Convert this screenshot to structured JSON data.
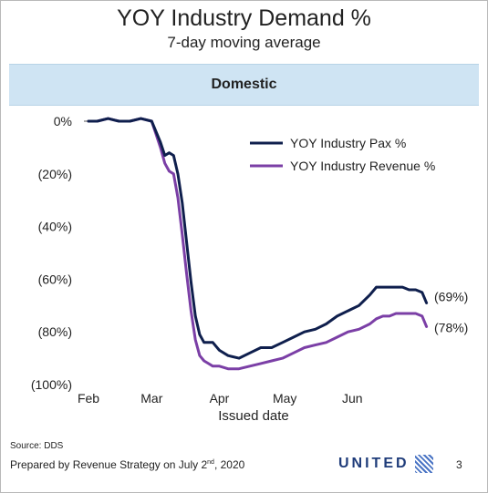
{
  "title": "YOY Industry Demand %",
  "subtitle": "7-day moving average",
  "banner": "Domestic",
  "footer": {
    "source": "Source: DDS",
    "prepared_prefix": "Prepared by Revenue Strategy on July 2",
    "prepared_suffix_sup": "nd",
    "prepared_year": ", 2020",
    "logo_text": "UNITED",
    "page_number": "3"
  },
  "colors": {
    "pax": "#0f1f4d",
    "revenue": "#7b3fa6",
    "banner": "#cfe4f3",
    "logo": "#1f3c7a"
  },
  "chart_data": {
    "type": "line",
    "xlabel": "Issued date",
    "ylabel": "",
    "y_tick_labels": [
      "0%",
      "(20%)",
      "(40%)",
      "(60%)",
      "(80%)",
      "(100%)"
    ],
    "y_ticks": [
      0,
      -20,
      -40,
      -60,
      -80,
      -100
    ],
    "ylim": [
      -100,
      0
    ],
    "x_tick_labels": [
      "Feb",
      "Mar",
      "Apr",
      "May",
      "Jun"
    ],
    "x_ticks": [
      "2020-02-01",
      "2020-03-01",
      "2020-04-01",
      "2020-05-01",
      "2020-06-01"
    ],
    "xlim": [
      "2020-02-01",
      "2020-07-06"
    ],
    "legend_position": "top-right",
    "series": [
      {
        "name": "YOY Industry Pax %",
        "end_label": "(69%)",
        "x": [
          "2020-02-01",
          "2020-02-05",
          "2020-02-10",
          "2020-02-15",
          "2020-02-20",
          "2020-02-25",
          "2020-03-01",
          "2020-03-03",
          "2020-03-05",
          "2020-03-07",
          "2020-03-09",
          "2020-03-11",
          "2020-03-13",
          "2020-03-15",
          "2020-03-17",
          "2020-03-19",
          "2020-03-21",
          "2020-03-23",
          "2020-03-25",
          "2020-03-27",
          "2020-03-29",
          "2020-04-01",
          "2020-04-05",
          "2020-04-10",
          "2020-04-15",
          "2020-04-20",
          "2020-04-25",
          "2020-04-30",
          "2020-05-05",
          "2020-05-10",
          "2020-05-15",
          "2020-05-20",
          "2020-05-25",
          "2020-05-30",
          "2020-06-04",
          "2020-06-09",
          "2020-06-12",
          "2020-06-15",
          "2020-06-18",
          "2020-06-21",
          "2020-06-24",
          "2020-06-27",
          "2020-06-30",
          "2020-07-03",
          "2020-07-05"
        ],
        "y": [
          0,
          0,
          1,
          0,
          0,
          1,
          0,
          -4,
          -8,
          -13,
          -12,
          -13,
          -20,
          -31,
          -46,
          -61,
          -74,
          -81,
          -84,
          -84,
          -84,
          -87,
          -89,
          -90,
          -88,
          -86,
          -86,
          -84,
          -82,
          -80,
          -79,
          -77,
          -74,
          -72,
          -70,
          -66,
          -63,
          -63,
          -63,
          -63,
          -63,
          -64,
          -64,
          -65,
          -69
        ]
      },
      {
        "name": "YOY Industry Revenue %",
        "end_label": "(78%)",
        "x": [
          "2020-02-01",
          "2020-02-05",
          "2020-02-10",
          "2020-02-15",
          "2020-02-20",
          "2020-02-25",
          "2020-03-01",
          "2020-03-03",
          "2020-03-05",
          "2020-03-07",
          "2020-03-09",
          "2020-03-11",
          "2020-03-13",
          "2020-03-15",
          "2020-03-17",
          "2020-03-19",
          "2020-03-21",
          "2020-03-23",
          "2020-03-25",
          "2020-03-27",
          "2020-03-29",
          "2020-04-01",
          "2020-04-05",
          "2020-04-10",
          "2020-04-15",
          "2020-04-20",
          "2020-04-25",
          "2020-04-30",
          "2020-05-05",
          "2020-05-10",
          "2020-05-15",
          "2020-05-20",
          "2020-05-25",
          "2020-05-30",
          "2020-06-04",
          "2020-06-09",
          "2020-06-12",
          "2020-06-15",
          "2020-06-18",
          "2020-06-21",
          "2020-06-24",
          "2020-06-27",
          "2020-06-30",
          "2020-07-03",
          "2020-07-05"
        ],
        "y": [
          0,
          0,
          1,
          0,
          0,
          1,
          0,
          -5,
          -10,
          -16,
          -19,
          -20,
          -29,
          -43,
          -58,
          -72,
          -83,
          -89,
          -91,
          -92,
          -93,
          -93,
          -94,
          -94,
          -93,
          -92,
          -91,
          -90,
          -88,
          -86,
          -85,
          -84,
          -82,
          -80,
          -79,
          -77,
          -75,
          -74,
          -74,
          -73,
          -73,
          -73,
          -73,
          -74,
          -78
        ]
      }
    ]
  }
}
